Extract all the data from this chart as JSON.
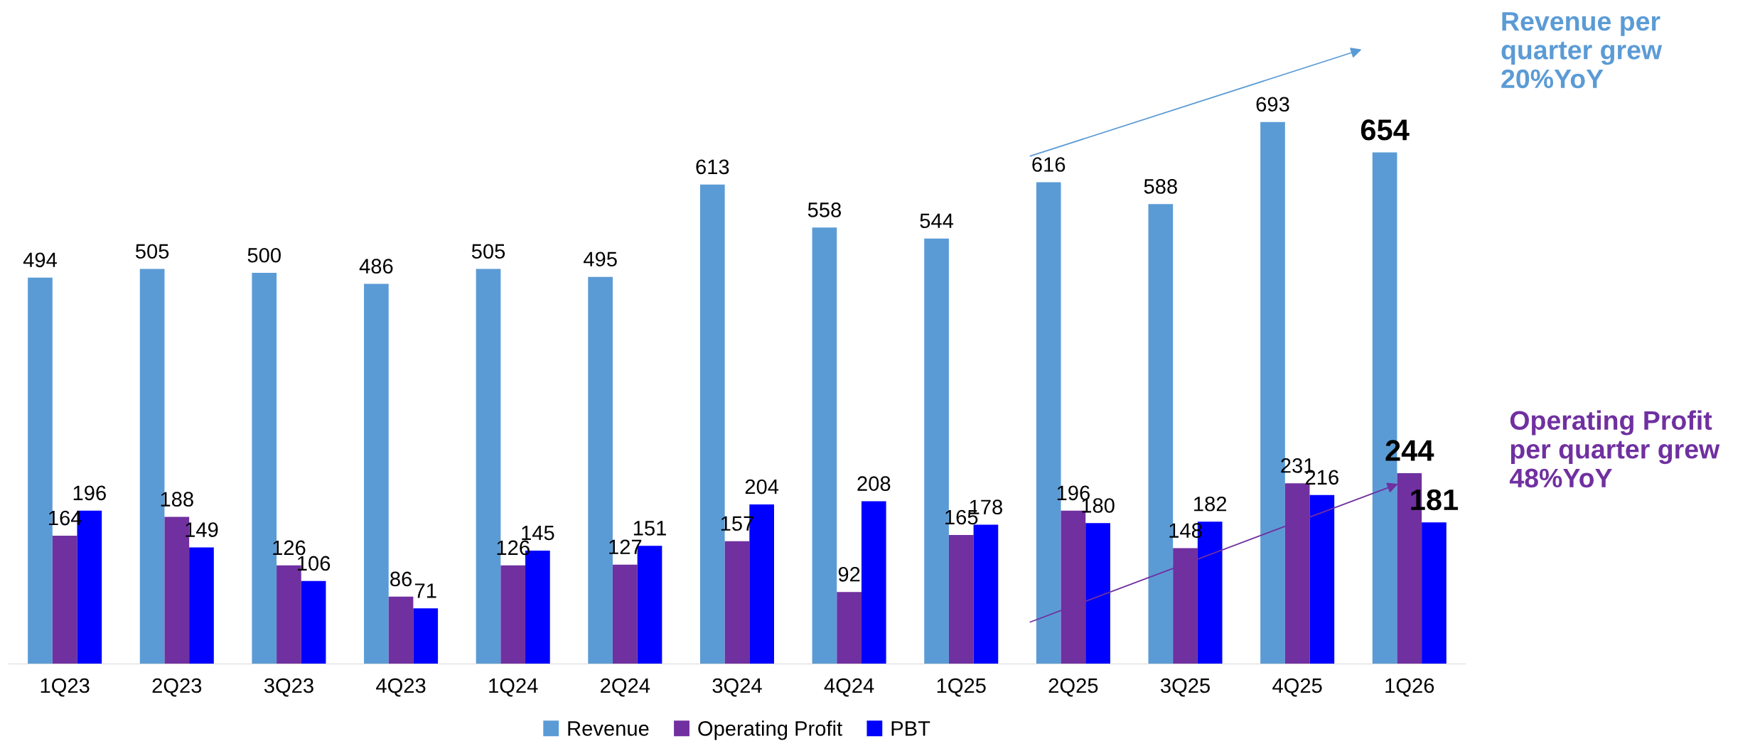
{
  "chart_data": {
    "type": "bar",
    "categories": [
      "1Q23",
      "2Q23",
      "3Q23",
      "4Q23",
      "1Q24",
      "2Q24",
      "3Q24",
      "4Q24",
      "1Q25",
      "2Q25",
      "3Q25",
      "4Q25",
      "1Q26"
    ],
    "series": [
      {
        "name": "Revenue",
        "color": "#5b9bd5",
        "values": [
          494,
          505,
          500,
          486,
          505,
          495,
          613,
          558,
          544,
          616,
          588,
          693,
          654
        ]
      },
      {
        "name": "Operating Profit",
        "color": "#7030a0",
        "values": [
          164,
          188,
          126,
          86,
          126,
          127,
          157,
          92,
          165,
          196,
          148,
          231,
          244
        ]
      },
      {
        "name": "PBT",
        "color": "#0000ff",
        "values": [
          196,
          149,
          106,
          71,
          145,
          151,
          204,
          208,
          178,
          180,
          182,
          216,
          181
        ]
      }
    ],
    "data_labels": true,
    "legend": "bottom",
    "grid": false,
    "annotations": [
      "Revenue per quarter grew 20%YoY",
      "Operating Profit per quarter grew 48%YoY"
    ]
  }
}
